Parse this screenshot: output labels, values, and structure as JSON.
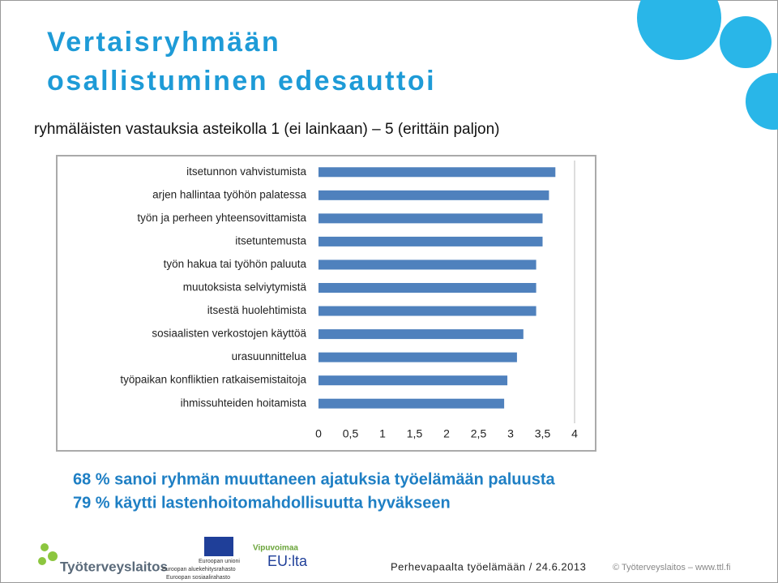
{
  "title": [
    "Vertaisryhmään",
    "osallistuminen edesauttoi"
  ],
  "subtitle": "ryhmäläisten vastauksia asteikolla 1 (ei lainkaan) – 5 (erittäin paljon)",
  "chart_data": {
    "type": "barh",
    "color": "#4f81bd",
    "categories": [
      "itsetunnon vahvistumista",
      "arjen hallintaa työhön palatessa",
      "työn ja perheen yhteensovittamista",
      "itsetuntemusta",
      "työn hakua tai työhön paluuta",
      "muutoksista selviytymistä",
      "itsestä huolehtimista",
      "sosiaalisten verkostojen käyttöä",
      "urasuunnittelua",
      "työpaikan konfliktien ratkaisemistaitoja",
      "ihmissuhteiden hoitamista"
    ],
    "values": [
      3.7,
      3.6,
      3.5,
      3.5,
      3.4,
      3.4,
      3.4,
      3.2,
      3.1,
      2.95,
      2.9
    ],
    "xlim": [
      0,
      4
    ],
    "xticks": [
      0,
      {
        "value": 0.5,
        "label": "0,5"
      },
      1,
      {
        "value": 1.5,
        "label": "1,5"
      },
      2,
      {
        "value": 2.5,
        "label": "2,5"
      },
      3,
      {
        "value": 3.5,
        "label": "3,5"
      },
      4
    ]
  },
  "bullets": [
    "68 % sanoi ryhmän muuttaneen ajatuksia työelämään paluusta",
    "79 % käytti lastenhoitomahdollisuutta hyväkseen"
  ],
  "footer": {
    "logo": "Työterveyslaitos",
    "eu": [
      "Euroopan unioni",
      "Euroopan aluekehitysrahasto",
      "Euroopan sosiaalirahasto"
    ],
    "vipu": [
      "Vipuvoimaa",
      "EU:lta"
    ],
    "event": "Perhevapaalta työelämään / 24.6.2013",
    "copyright": "© Työterveyslaitos – www.ttl.fi"
  }
}
